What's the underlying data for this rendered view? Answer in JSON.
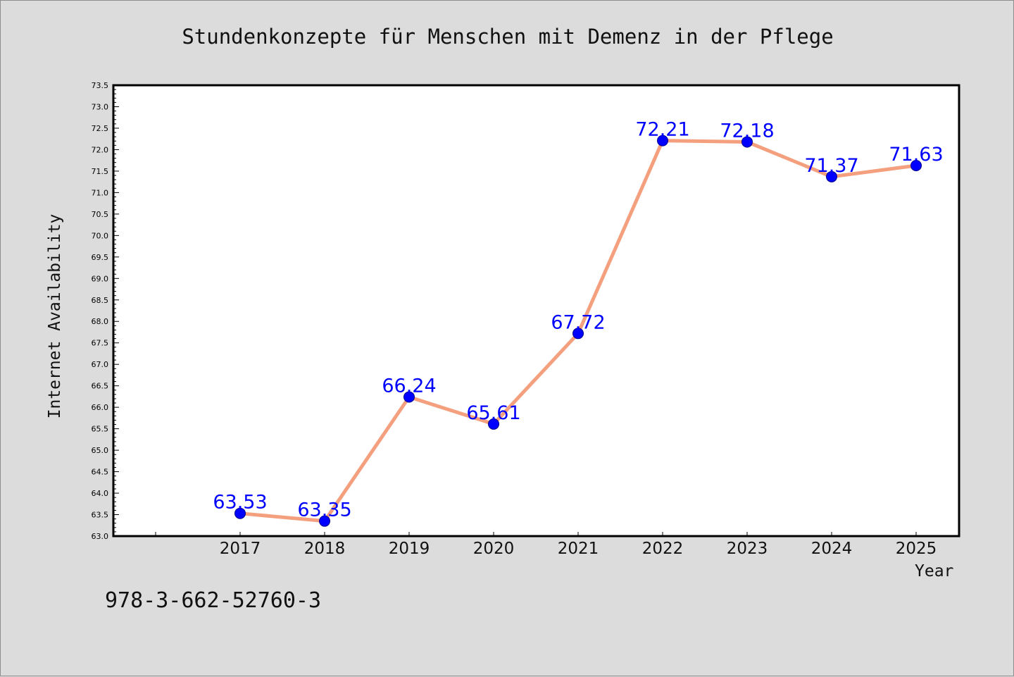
{
  "figure": {
    "background": "#dcdcdc",
    "footer_text": "978-3-662-52760-3"
  },
  "chart_data": {
    "type": "line",
    "title": "Stundenkonzepte für Menschen mit Demenz in der Pflege",
    "xlabel": "Year",
    "ylabel": "Internet Availability",
    "categories": [
      "2017",
      "2018",
      "2019",
      "2020",
      "2021",
      "2022",
      "2023",
      "2024",
      "2025"
    ],
    "series": [
      {
        "values": [
          63.53,
          63.35,
          66.24,
          65.61,
          67.72,
          72.21,
          72.18,
          71.37,
          71.63
        ],
        "labels": [
          "63.53",
          "63.35",
          "66.24",
          "65.61",
          "67.72",
          "72.21",
          "72.18",
          "71.37",
          "71.63"
        ],
        "line_color": "#f4a07e",
        "marker_color": "#0000ff"
      }
    ],
    "ylim": [
      63.0,
      73.5
    ],
    "y_ticks": [
      "63.0",
      "63.5",
      "64.0",
      "64.5",
      "65.0",
      "65.5",
      "66.0",
      "66.5",
      "67.0",
      "67.5",
      "68.0",
      "68.5",
      "69.0",
      "69.5",
      "70.0",
      "70.5",
      "71.0",
      "71.5",
      "72.0",
      "72.5",
      "73.0",
      "73.5"
    ],
    "label_color": "#0000ff",
    "grid": false,
    "legend": "none"
  }
}
